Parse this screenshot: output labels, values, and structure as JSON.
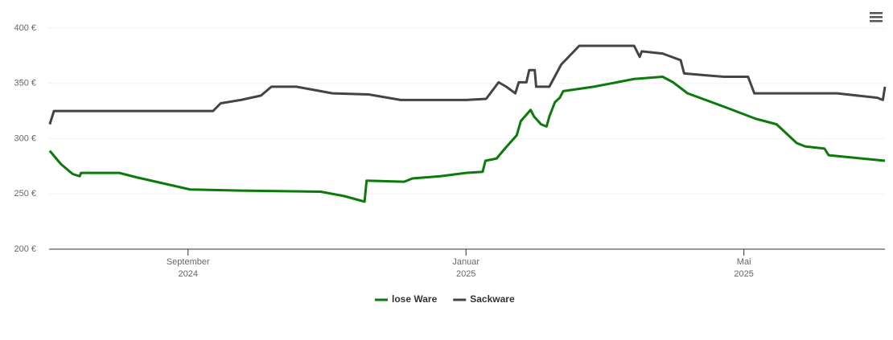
{
  "chart_data": {
    "type": "line",
    "xlim": [
      -2,
      10.03
    ],
    "xticks": [
      {
        "value": 0,
        "label": "September",
        "sublabel": "2024"
      },
      {
        "value": 4,
        "label": "Januar",
        "sublabel": "2025"
      },
      {
        "value": 8,
        "label": "Mai",
        "sublabel": "2025"
      }
    ],
    "ylim": [
      200,
      400
    ],
    "yticks": [
      {
        "value": 200,
        "label": "200 €"
      },
      {
        "value": 250,
        "label": "250 €"
      },
      {
        "value": 300,
        "label": "300 €"
      },
      {
        "value": 350,
        "label": "350 €"
      },
      {
        "value": 400,
        "label": "400 €"
      }
    ],
    "grid": true,
    "legend": "bottom",
    "series": [
      {
        "name": "lose Ware",
        "color": "#0b7a0b",
        "x": [
          -1.99,
          -1.83,
          -1.66,
          -1.56,
          -1.54,
          -0.99,
          -0.74,
          0.03,
          0.76,
          1.91,
          2.25,
          2.54,
          2.57,
          3.11,
          3.23,
          3.63,
          4.0,
          4.24,
          4.28,
          4.44,
          4.56,
          4.73,
          4.79,
          4.86,
          4.93,
          4.98,
          5.08,
          5.16,
          5.2,
          5.28,
          5.35,
          5.4,
          5.84,
          6.42,
          6.83,
          6.98,
          7.19,
          7.71,
          8.17,
          8.47,
          8.76,
          8.88,
          9.16,
          9.22,
          10.03
        ],
        "values": [
          289,
          277,
          268,
          266,
          269,
          269,
          265,
          254,
          253,
          252,
          248,
          243,
          262,
          261,
          264,
          266,
          269,
          270,
          280,
          282,
          291,
          303,
          316,
          321,
          326,
          320,
          313,
          311,
          320,
          333,
          337,
          343,
          347,
          354,
          356,
          351,
          341,
          329,
          318,
          313,
          296,
          293,
          291,
          285,
          280
        ]
      },
      {
        "name": "Sackware",
        "color": "#444444",
        "x": [
          -1.99,
          -1.93,
          -0.97,
          0.36,
          0.47,
          0.76,
          1.05,
          1.2,
          1.56,
          2.08,
          2.6,
          3.06,
          4.0,
          4.29,
          4.47,
          4.58,
          4.71,
          4.76,
          4.87,
          4.91,
          4.99,
          5.01,
          5.2,
          5.37,
          5.63,
          6.42,
          6.5,
          6.53,
          6.83,
          7.09,
          7.14,
          7.71,
          8.06,
          8.15,
          9.34,
          9.92,
          10.0,
          10.03
        ],
        "values": [
          313,
          325,
          325,
          325,
          332,
          335,
          339,
          347,
          347,
          341,
          340,
          335,
          335,
          336,
          351,
          347,
          341,
          351,
          351,
          362,
          362,
          347,
          347,
          367,
          384,
          384,
          374,
          379,
          377,
          371,
          359,
          356,
          356,
          341,
          341,
          337,
          335,
          347
        ]
      }
    ]
  }
}
